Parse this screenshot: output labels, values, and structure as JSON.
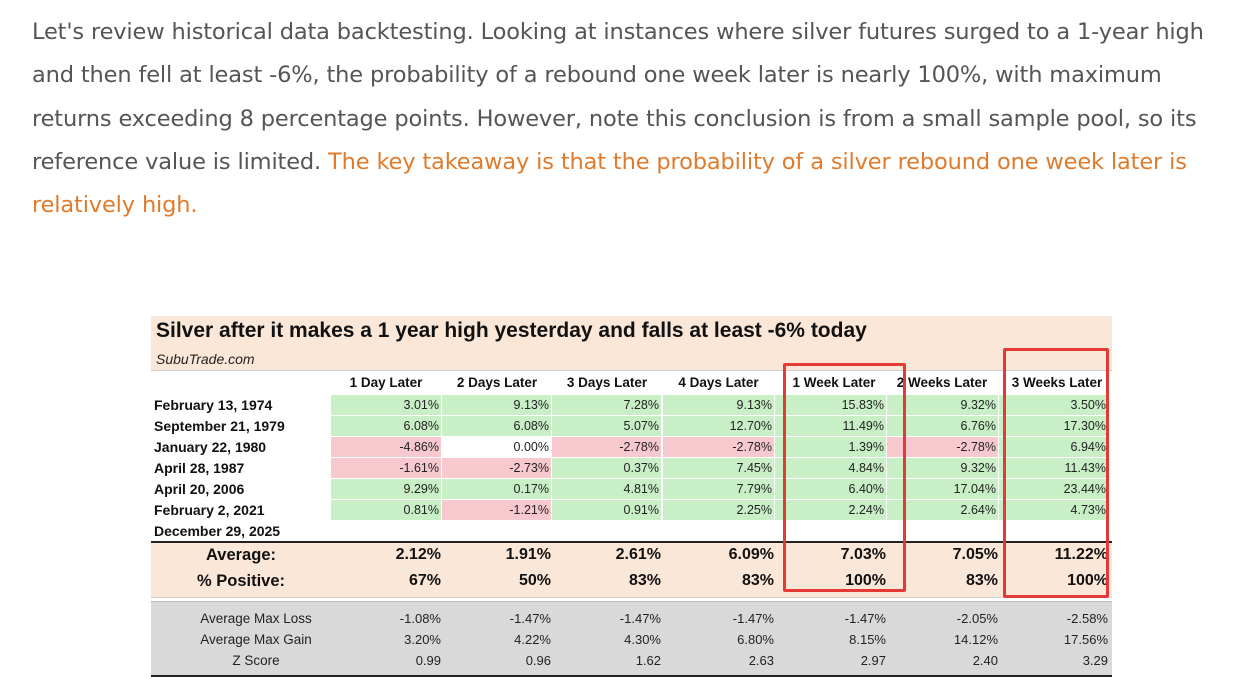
{
  "article": {
    "paragraph": "Let's review historical data backtesting. Looking at instances where silver futures surged to a 1-year high and then fell at least -6%, the probability of a rebound one week later is nearly 100%, with maximum returns exceeding 8 percentage points. However, note this conclusion is from a small sample pool, so its reference value is limited. ",
    "highlight": "The key takeaway is that the probability of a silver rebound one week later is relatively high."
  },
  "colors": {
    "highlight_text": "#e07b2c",
    "positive_cell": "#c9efc7",
    "negative_cell": "#f7c9cf",
    "band": "#fbe7d8",
    "box": "#e53935"
  },
  "figure": {
    "title": "Silver after it makes a 1 year high yesterday and falls at least -6% today",
    "source": "SubuTrade.com",
    "columns": [
      "1 Day Later",
      "2 Days Later",
      "3 Days Later",
      "4 Days Later",
      "1 Week Later",
      "2 Weeks Later",
      "3 Weeks Later"
    ],
    "rows": [
      {
        "date": "February 13, 1974",
        "values": [
          "3.01%",
          "9.13%",
          "7.28%",
          "9.13%",
          "15.83%",
          "9.32%",
          "3.50%"
        ],
        "signs": [
          "g",
          "g",
          "g",
          "g",
          "g",
          "g",
          "g"
        ]
      },
      {
        "date": "September 21, 1979",
        "values": [
          "6.08%",
          "6.08%",
          "5.07%",
          "12.70%",
          "11.49%",
          "6.76%",
          "17.30%"
        ],
        "signs": [
          "g",
          "g",
          "g",
          "g",
          "g",
          "g",
          "g"
        ]
      },
      {
        "date": "January 22, 1980",
        "values": [
          "-4.86%",
          "0.00%",
          "-2.78%",
          "-2.78%",
          "1.39%",
          "-2.78%",
          "6.94%"
        ],
        "signs": [
          "r",
          "n",
          "r",
          "r",
          "g",
          "r",
          "g"
        ]
      },
      {
        "date": "April 28, 1987",
        "values": [
          "-1.61%",
          "-2.73%",
          "0.37%",
          "7.45%",
          "4.84%",
          "9.32%",
          "11.43%"
        ],
        "signs": [
          "r",
          "r",
          "g",
          "g",
          "g",
          "g",
          "g"
        ]
      },
      {
        "date": "April 20, 2006",
        "values": [
          "9.29%",
          "0.17%",
          "4.81%",
          "7.79%",
          "6.40%",
          "17.04%",
          "23.44%"
        ],
        "signs": [
          "g",
          "g",
          "g",
          "g",
          "g",
          "g",
          "g"
        ]
      },
      {
        "date": "February 2, 2021",
        "values": [
          "0.81%",
          "-1.21%",
          "0.91%",
          "2.25%",
          "2.24%",
          "2.64%",
          "4.73%"
        ],
        "signs": [
          "g",
          "r",
          "g",
          "g",
          "g",
          "g",
          "g"
        ]
      },
      {
        "date": "December 29, 2025",
        "values": [
          "",
          "",
          "",
          "",
          "",
          "",
          ""
        ],
        "signs": [
          "n",
          "n",
          "n",
          "n",
          "n",
          "n",
          "n"
        ]
      }
    ],
    "summary": {
      "average_label": "Average:",
      "average": [
        "2.12%",
        "1.91%",
        "2.61%",
        "6.09%",
        "7.03%",
        "7.05%",
        "11.22%"
      ],
      "positive_label": "% Positive:",
      "positive": [
        "67%",
        "50%",
        "83%",
        "83%",
        "100%",
        "83%",
        "100%"
      ]
    },
    "risk": {
      "max_loss_label": "Average Max Loss",
      "max_loss": [
        "-1.08%",
        "-1.47%",
        "-1.47%",
        "-1.47%",
        "-1.47%",
        "-2.05%",
        "-2.58%"
      ],
      "max_gain_label": "Average Max Gain",
      "max_gain": [
        "3.20%",
        "4.22%",
        "4.30%",
        "6.80%",
        "8.15%",
        "14.12%",
        "17.56%"
      ],
      "z_label": "Z Score",
      "z": [
        "0.99",
        "0.96",
        "1.62",
        "2.63",
        "2.97",
        "2.40",
        "3.29"
      ]
    }
  }
}
